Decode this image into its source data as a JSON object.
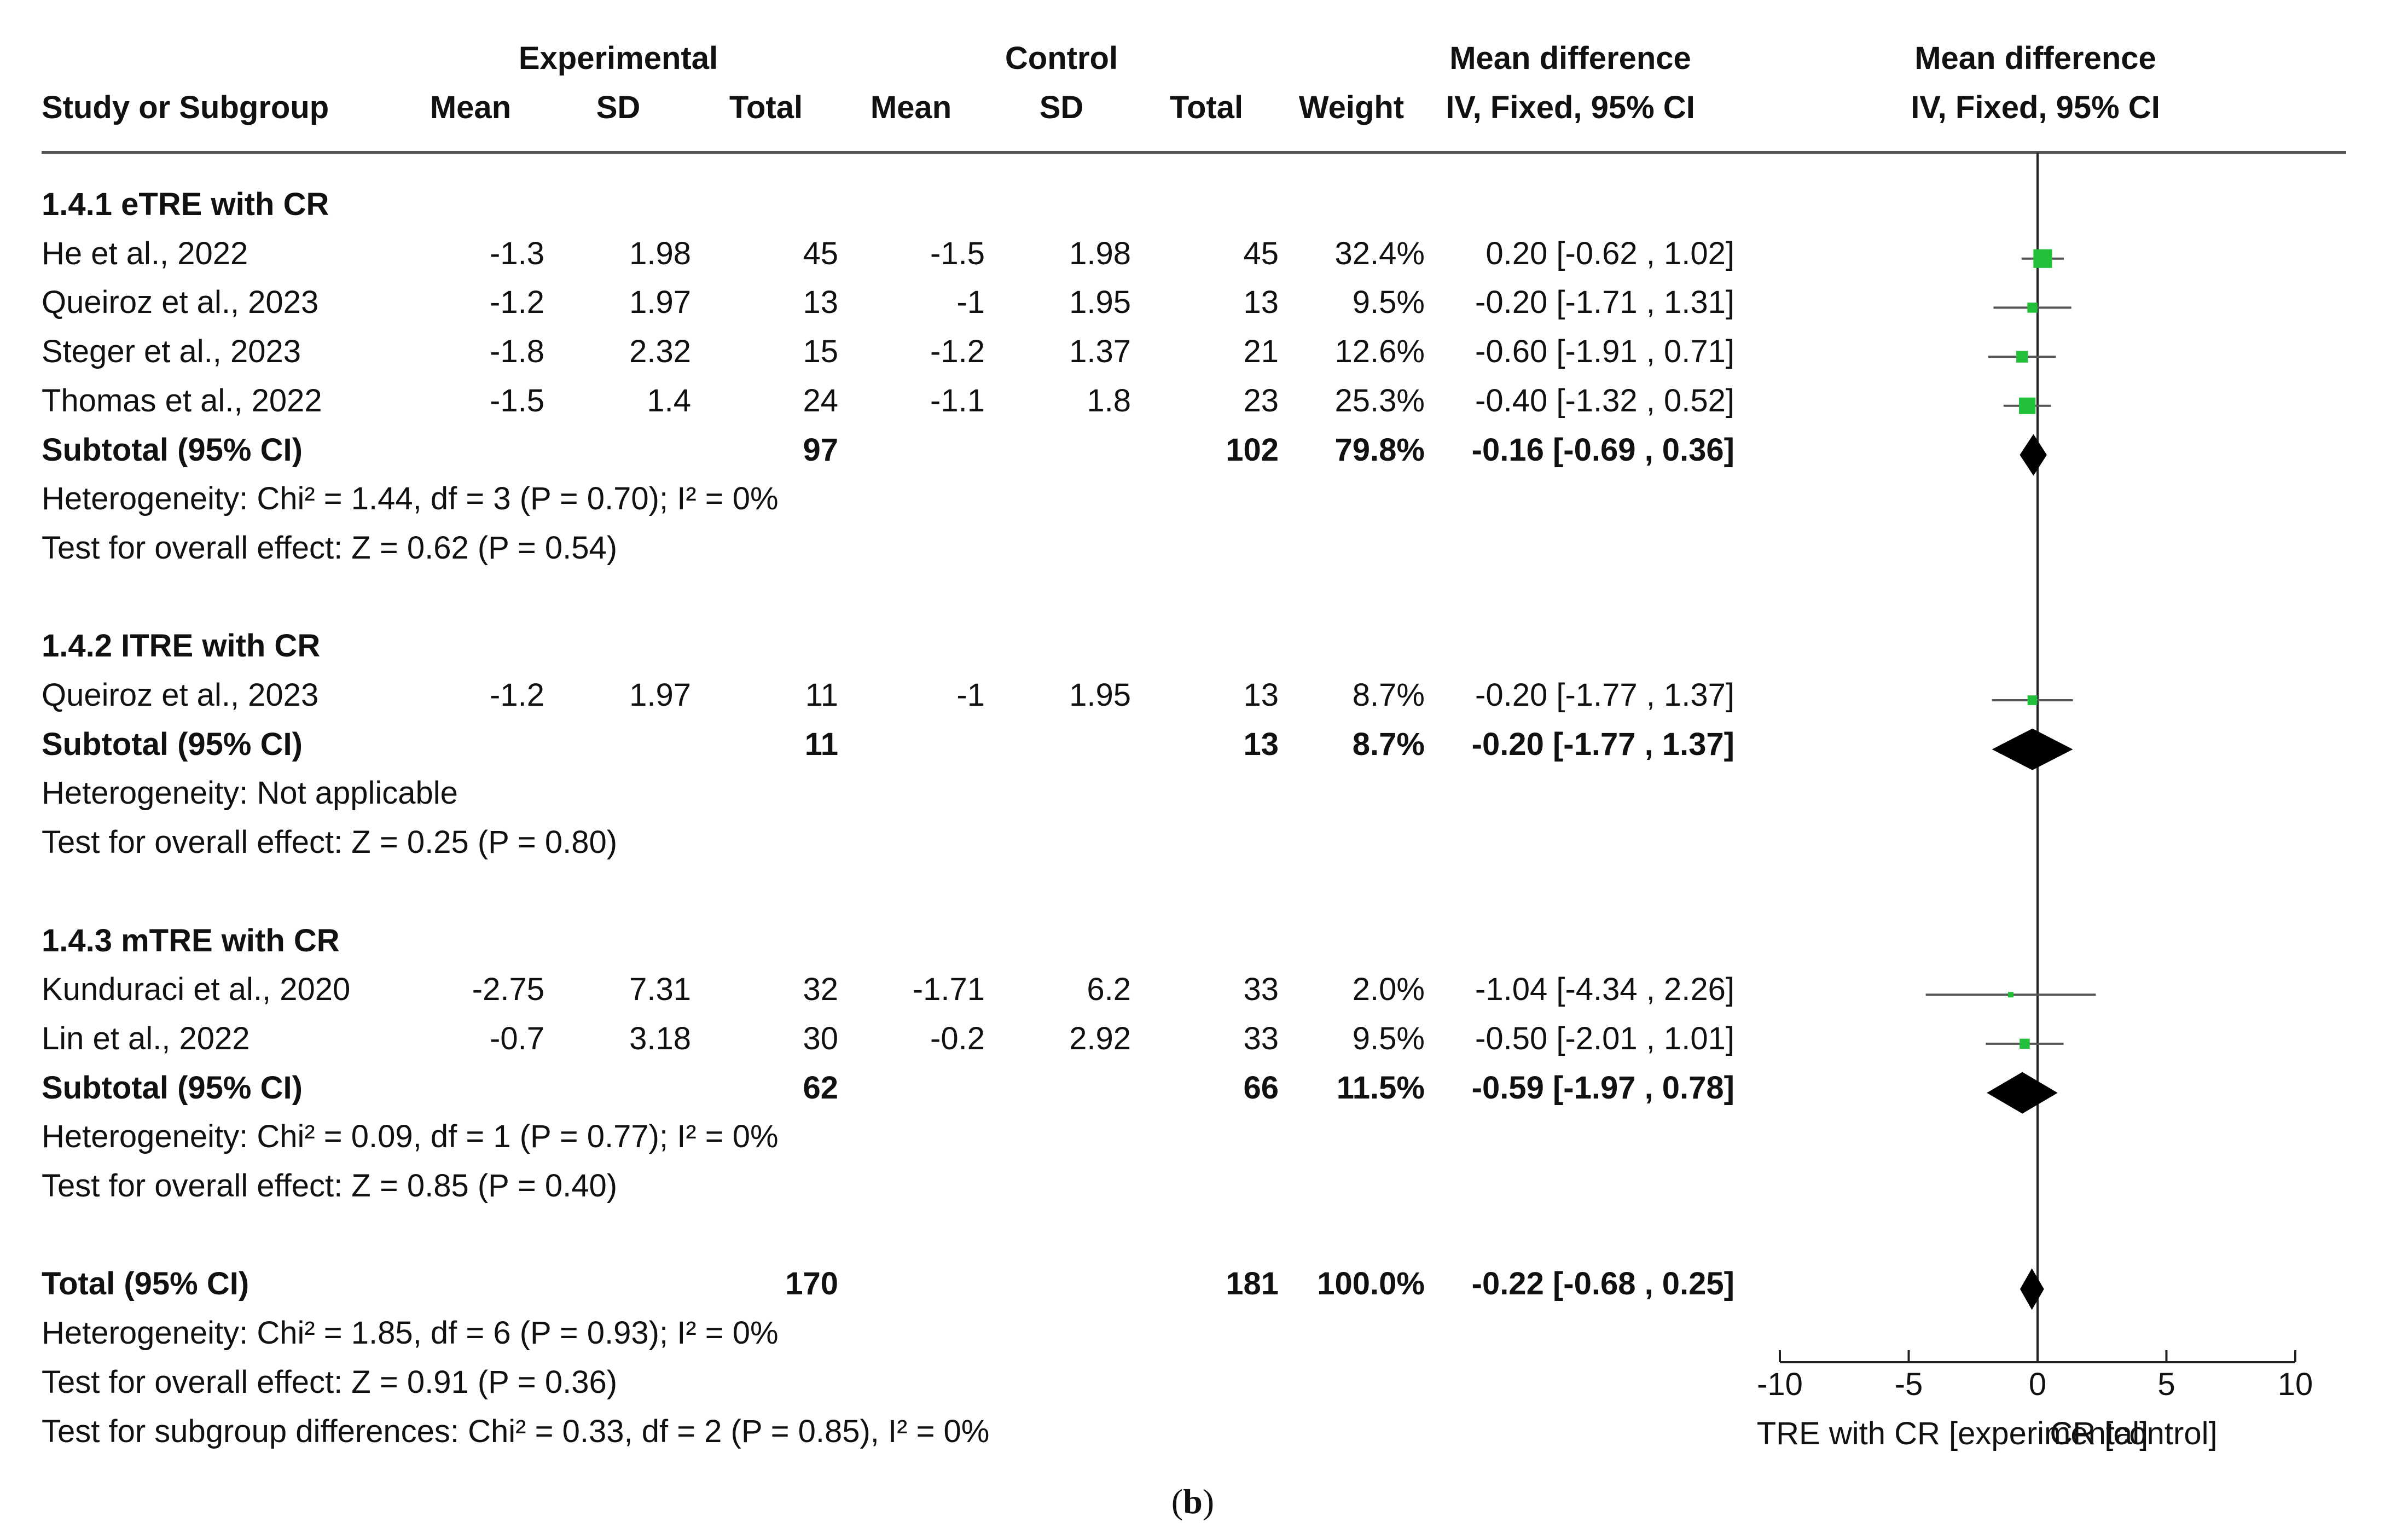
{
  "header": {
    "experimental": "Experimental",
    "control": "Control",
    "md_top": "Mean difference",
    "md_plot_top": "Mean difference",
    "study": "Study or Subgroup",
    "mean_e": "Mean",
    "sd_e": "SD",
    "total_e": "Total",
    "mean_c": "Mean",
    "sd_c": "SD",
    "total_c": "Total",
    "weight": "Weight",
    "method": "IV, Fixed, 95% CI",
    "method_plot": "IV, Fixed, 95% CI"
  },
  "rows": [
    {
      "kind": "group",
      "label": "1.4.1 eTRE with CR"
    },
    {
      "kind": "study",
      "label": "He et al., 2022",
      "mean_e": "-1.3",
      "sd_e": "1.98",
      "total_e": "45",
      "mean_c": "-1.5",
      "sd_c": "1.98",
      "total_c": "45",
      "weight": "32.4%",
      "ci": "0.20 [-0.62 , 1.02]",
      "md": 0.2,
      "lo": -0.62,
      "hi": 1.02,
      "w": 32.4
    },
    {
      "kind": "study",
      "label": "Queiroz et al., 2023",
      "mean_e": "-1.2",
      "sd_e": "1.97",
      "total_e": "13",
      "mean_c": "-1",
      "sd_c": "1.95",
      "total_c": "13",
      "weight": "9.5%",
      "ci": "-0.20 [-1.71 , 1.31]",
      "md": -0.2,
      "lo": -1.71,
      "hi": 1.31,
      "w": 9.5
    },
    {
      "kind": "study",
      "label": "Steger et al., 2023",
      "mean_e": "-1.8",
      "sd_e": "2.32",
      "total_e": "15",
      "mean_c": "-1.2",
      "sd_c": "1.37",
      "total_c": "21",
      "weight": "12.6%",
      "ci": "-0.60 [-1.91 , 0.71]",
      "md": -0.6,
      "lo": -1.91,
      "hi": 0.71,
      "w": 12.6
    },
    {
      "kind": "study",
      "label": "Thomas et al., 2022",
      "mean_e": "-1.5",
      "sd_e": "1.4",
      "total_e": "24",
      "mean_c": "-1.1",
      "sd_c": "1.8",
      "total_c": "23",
      "weight": "25.3%",
      "ci": "-0.40 [-1.32 , 0.52]",
      "md": -0.4,
      "lo": -1.32,
      "hi": 0.52,
      "w": 25.3
    },
    {
      "kind": "subtotal",
      "label": "Subtotal (95% CI)",
      "total_e": "97",
      "total_c": "102",
      "weight": "79.8%",
      "ci": "-0.16 [-0.69 , 0.36]",
      "md": -0.16,
      "lo": -0.69,
      "hi": 0.36
    },
    {
      "kind": "note",
      "label": "Heterogeneity: Chi² = 1.44, df = 3 (P = 0.70); I² = 0%"
    },
    {
      "kind": "note",
      "label": "Test for overall effect: Z = 0.62 (P = 0.54)"
    },
    {
      "kind": "blank"
    },
    {
      "kind": "group",
      "label": "1.4.2 ITRE with CR"
    },
    {
      "kind": "study",
      "label": "Queiroz et al., 2023",
      "mean_e": "-1.2",
      "sd_e": "1.97",
      "total_e": "11",
      "mean_c": "-1",
      "sd_c": "1.95",
      "total_c": "13",
      "weight": "8.7%",
      "ci": "-0.20 [-1.77 , 1.37]",
      "md": -0.2,
      "lo": -1.77,
      "hi": 1.37,
      "w": 8.7
    },
    {
      "kind": "subtotal",
      "label": "Subtotal (95% CI)",
      "total_e": "11",
      "total_c": "13",
      "weight": "8.7%",
      "ci": "-0.20 [-1.77 , 1.37]",
      "md": -0.2,
      "lo": -1.77,
      "hi": 1.37
    },
    {
      "kind": "note",
      "label": "Heterogeneity: Not applicable"
    },
    {
      "kind": "note",
      "label": "Test for overall effect: Z = 0.25 (P = 0.80)"
    },
    {
      "kind": "blank"
    },
    {
      "kind": "group",
      "label": "1.4.3 mTRE with CR"
    },
    {
      "kind": "study",
      "label": "Kunduraci et al., 2020",
      "mean_e": "-2.75",
      "sd_e": "7.31",
      "total_e": "32",
      "mean_c": "-1.71",
      "sd_c": "6.2",
      "total_c": "33",
      "weight": "2.0%",
      "ci": "-1.04 [-4.34 , 2.26]",
      "md": -1.04,
      "lo": -4.34,
      "hi": 2.26,
      "w": 2.0
    },
    {
      "kind": "study",
      "label": "Lin et al., 2022",
      "mean_e": "-0.7",
      "sd_e": "3.18",
      "total_e": "30",
      "mean_c": "-0.2",
      "sd_c": "2.92",
      "total_c": "33",
      "weight": "9.5%",
      "ci": "-0.50 [-2.01 , 1.01]",
      "md": -0.5,
      "lo": -2.01,
      "hi": 1.01,
      "w": 9.5
    },
    {
      "kind": "subtotal",
      "label": "Subtotal (95% CI)",
      "total_e": "62",
      "total_c": "66",
      "weight": "11.5%",
      "ci": "-0.59 [-1.97 , 0.78]",
      "md": -0.59,
      "lo": -1.97,
      "hi": 0.78
    },
    {
      "kind": "note",
      "label": "Heterogeneity: Chi² = 0.09, df = 1 (P = 0.77); I² = 0%"
    },
    {
      "kind": "note",
      "label": "Test for overall effect: Z = 0.85 (P = 0.40)"
    },
    {
      "kind": "blank"
    },
    {
      "kind": "subtotal",
      "label": "Total (95% CI)",
      "total_e": "170",
      "total_c": "181",
      "weight": "100.0%",
      "ci": "-0.22 [-0.68 , 0.25]",
      "md": -0.22,
      "lo": -0.68,
      "hi": 0.25
    },
    {
      "kind": "note",
      "label": "Heterogeneity: Chi² = 1.85, df = 6 (P = 0.93); I² = 0%"
    },
    {
      "kind": "note",
      "label": "Test for overall effect: Z = 0.91 (P = 0.36)"
    },
    {
      "kind": "note",
      "label": "Test for subgroup differences: Chi² = 0.33, df = 2 (P = 0.85), I² = 0%"
    }
  ],
  "chart_data": {
    "type": "forest",
    "title": "Mean difference IV, Fixed, 95% CI",
    "xlim": [
      -10,
      10
    ],
    "xticks": [
      -10,
      -5,
      0,
      5,
      10
    ],
    "xtick_labels": [
      "-10",
      "-5",
      "0",
      "5",
      "10"
    ],
    "left_label": "TRE with CR [experimental]",
    "right_label": "CR [control]",
    "marker_color": "#22c03a",
    "diamond_color": "#000000"
  },
  "caption_open": "(",
  "caption_letter": "b",
  "caption_close": ")"
}
